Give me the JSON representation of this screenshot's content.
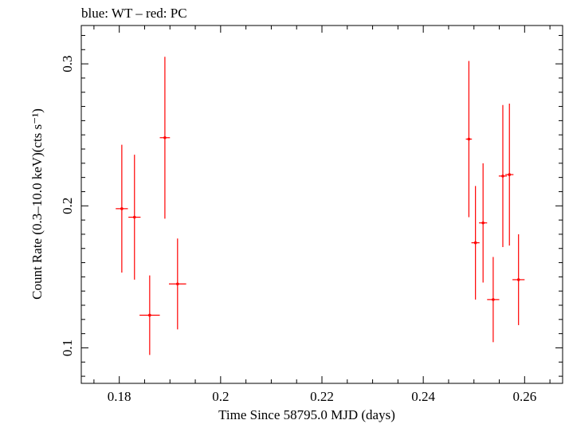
{
  "chart_data": {
    "type": "scatter",
    "title": "blue: WT – red: PC",
    "xlabel": "Time Since 58795.0 MJD (days)",
    "ylabel": "Count Rate (0.3–10.0 keV)(cts s⁻¹)",
    "xlim": [
      0.1725,
      0.2675
    ],
    "ylim": [
      0.075,
      0.327
    ],
    "xticks": [
      0.18,
      0.2,
      0.22,
      0.24,
      0.26
    ],
    "xtick_labels": [
      "0.18",
      "0.2",
      "0.22",
      "0.24",
      "0.26"
    ],
    "yticks": [
      0.1,
      0.2,
      0.3
    ],
    "ytick_labels": [
      "0.1",
      "0.2",
      "0.3"
    ],
    "grid": false,
    "series": [
      {
        "name": "PC",
        "color": "#ff0000",
        "points": [
          {
            "x": 0.1805,
            "y": 0.198,
            "xerr": 0.0012,
            "yerr": 0.045
          },
          {
            "x": 0.183,
            "y": 0.192,
            "xerr": 0.0012,
            "yerr": 0.044
          },
          {
            "x": 0.186,
            "y": 0.123,
            "xerr": 0.002,
            "yerr": 0.028
          },
          {
            "x": 0.189,
            "y": 0.248,
            "xerr": 0.001,
            "yerr": 0.057
          },
          {
            "x": 0.1915,
            "y": 0.145,
            "xerr": 0.0017,
            "yerr": 0.032
          },
          {
            "x": 0.249,
            "y": 0.247,
            "xerr": 0.0006,
            "yerr": 0.055
          },
          {
            "x": 0.2503,
            "y": 0.174,
            "xerr": 0.0008,
            "yerr": 0.04
          },
          {
            "x": 0.2518,
            "y": 0.188,
            "xerr": 0.0008,
            "yerr": 0.042
          },
          {
            "x": 0.2538,
            "y": 0.134,
            "xerr": 0.0012,
            "yerr": 0.03
          },
          {
            "x": 0.2557,
            "y": 0.221,
            "xerr": 0.0008,
            "yerr": 0.05
          },
          {
            "x": 0.257,
            "y": 0.222,
            "xerr": 0.0008,
            "yerr": 0.05
          },
          {
            "x": 0.2588,
            "y": 0.148,
            "xerr": 0.0012,
            "yerr": 0.032
          }
        ]
      }
    ]
  }
}
